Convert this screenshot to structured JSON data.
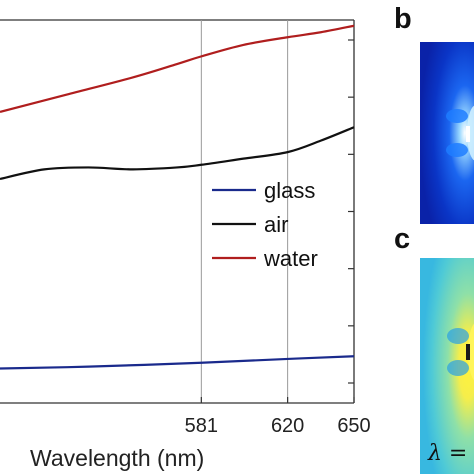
{
  "chart_data": {
    "type": "line",
    "title": "",
    "xlabel": "Wavelength (nm)",
    "ylabel": "",
    "xlim": [
      490,
      650
    ],
    "ylim": [
      0,
      10
    ],
    "x_ticks": [
      581,
      620,
      650
    ],
    "x_tick_labels": [
      "581",
      "620",
      "650"
    ],
    "vertical_gridlines_at": [
      581,
      620
    ],
    "legend_placement": "center-right",
    "series": [
      {
        "name": "glass",
        "color": "#1a2a8c",
        "x": [
          490,
          530,
          581,
          620,
          650
        ],
        "y": [
          0.9,
          0.95,
          1.05,
          1.15,
          1.22
        ]
      },
      {
        "name": "air",
        "color": "#111111",
        "x": [
          490,
          510,
          530,
          550,
          570,
          581,
          600,
          620,
          635,
          650
        ],
        "y": [
          5.85,
          6.1,
          6.15,
          6.1,
          6.15,
          6.22,
          6.38,
          6.55,
          6.85,
          7.2
        ]
      },
      {
        "name": "water",
        "color": "#b01e1e",
        "x": [
          490,
          520,
          550,
          570,
          581,
          600,
          620,
          635,
          650
        ],
        "y": [
          7.6,
          8.05,
          8.5,
          8.85,
          9.05,
          9.35,
          9.55,
          9.68,
          9.85
        ]
      }
    ]
  },
  "panels": {
    "b_label": "b",
    "c_label": "c",
    "lambda_text": "λ ="
  },
  "colors": {
    "panel_b_background": "#0a33c8",
    "panel_c_background": "#5fd0c8"
  }
}
